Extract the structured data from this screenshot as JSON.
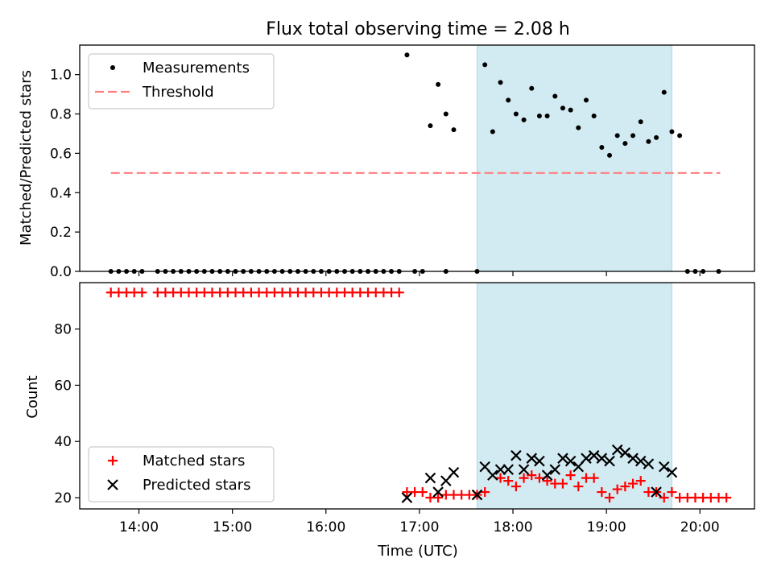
{
  "chart_data": [
    {
      "type": "scatter",
      "title": "Flux total observing time = 2.08 h",
      "xlabel": "",
      "ylabel": "Matched/Predicted stars",
      "ylim": [
        0,
        1.15
      ],
      "xlim": [
        "13:22",
        "20:35"
      ],
      "yticks": [
        "0.0",
        "0.2",
        "0.4",
        "0.6",
        "0.8",
        "1.0"
      ],
      "shaded_interval": [
        "17:37",
        "19:42"
      ],
      "threshold": {
        "value": 0.5,
        "x": [
          "13:42",
          "20:13"
        ],
        "color": "#ff7f7f"
      },
      "legend": {
        "position": "top-left",
        "entries": [
          {
            "label": "Measurements",
            "marker": "dot",
            "color": "#000000"
          },
          {
            "label": "Threshold",
            "marker": "dashed-line",
            "color": "#ff7f7f"
          }
        ]
      },
      "series": [
        {
          "name": "Measurements",
          "color": "#000000",
          "points": [
            [
              "13:42",
              0
            ],
            [
              "13:47",
              0
            ],
            [
              "13:52",
              0
            ],
            [
              "13:57",
              0
            ],
            [
              "14:02",
              0
            ],
            [
              "14:12",
              0
            ],
            [
              "14:17",
              0
            ],
            [
              "14:22",
              0
            ],
            [
              "14:27",
              0
            ],
            [
              "14:32",
              0
            ],
            [
              "14:37",
              0
            ],
            [
              "14:42",
              0
            ],
            [
              "14:47",
              0
            ],
            [
              "14:52",
              0
            ],
            [
              "14:57",
              0
            ],
            [
              "15:02",
              0
            ],
            [
              "15:07",
              0
            ],
            [
              "15:12",
              0
            ],
            [
              "15:17",
              0
            ],
            [
              "15:22",
              0
            ],
            [
              "15:27",
              0
            ],
            [
              "15:32",
              0
            ],
            [
              "15:37",
              0
            ],
            [
              "15:42",
              0
            ],
            [
              "15:47",
              0
            ],
            [
              "15:52",
              0
            ],
            [
              "15:57",
              0
            ],
            [
              "16:02",
              0
            ],
            [
              "16:07",
              0
            ],
            [
              "16:12",
              0
            ],
            [
              "16:17",
              0
            ],
            [
              "16:22",
              0
            ],
            [
              "16:27",
              0
            ],
            [
              "16:32",
              0
            ],
            [
              "16:37",
              0
            ],
            [
              "16:42",
              0
            ],
            [
              "16:47",
              0
            ],
            [
              "16:57",
              0
            ],
            [
              "17:02",
              0
            ],
            [
              "17:17",
              0
            ],
            [
              "17:37",
              0
            ],
            [
              "16:52",
              1.1
            ],
            [
              "17:07",
              0.74
            ],
            [
              "17:12",
              0.95
            ],
            [
              "17:17",
              0.8
            ],
            [
              "17:22",
              0.72
            ],
            [
              "17:42",
              1.05
            ],
            [
              "17:47",
              0.71
            ],
            [
              "17:52",
              0.96
            ],
            [
              "17:57",
              0.87
            ],
            [
              "18:02",
              0.8
            ],
            [
              "18:07",
              0.77
            ],
            [
              "18:12",
              0.93
            ],
            [
              "18:17",
              0.79
            ],
            [
              "18:22",
              0.79
            ],
            [
              "18:27",
              0.89
            ],
            [
              "18:32",
              0.83
            ],
            [
              "18:37",
              0.82
            ],
            [
              "18:42",
              0.73
            ],
            [
              "18:47",
              0.87
            ],
            [
              "18:52",
              0.79
            ],
            [
              "18:57",
              0.63
            ],
            [
              "19:02",
              0.59
            ],
            [
              "19:07",
              0.69
            ],
            [
              "19:12",
              0.65
            ],
            [
              "19:17",
              0.69
            ],
            [
              "19:22",
              0.76
            ],
            [
              "19:27",
              0.66
            ],
            [
              "19:32",
              0.68
            ],
            [
              "19:37",
              0.91
            ],
            [
              "19:42",
              0.71
            ],
            [
              "19:47",
              0.69
            ],
            [
              "19:52",
              0
            ],
            [
              "19:57",
              0
            ],
            [
              "20:02",
              0
            ],
            [
              "20:12",
              0
            ]
          ]
        }
      ]
    },
    {
      "type": "scatter",
      "xlabel": "Time (UTC)",
      "ylabel": "Count",
      "ylim": [
        16,
        96.5
      ],
      "xlim": [
        "13:22",
        "20:35"
      ],
      "xticks": [
        "14:00",
        "15:00",
        "16:00",
        "17:00",
        "18:00",
        "19:00",
        "20:00"
      ],
      "yticks": [
        "20",
        "40",
        "60",
        "80"
      ],
      "shaded_interval": [
        "17:37",
        "19:42"
      ],
      "legend": {
        "position": "bottom-left",
        "entries": [
          {
            "label": "Matched stars",
            "marker": "plus",
            "color": "#ff0000"
          },
          {
            "label": "Predicted stars",
            "marker": "x",
            "color": "#000000"
          }
        ]
      },
      "series": [
        {
          "name": "Matched stars",
          "marker": "plus",
          "color": "#ff0000",
          "points": [
            [
              "13:42",
              93
            ],
            [
              "13:47",
              93
            ],
            [
              "13:52",
              93
            ],
            [
              "13:57",
              93
            ],
            [
              "14:02",
              93
            ],
            [
              "14:12",
              93
            ],
            [
              "14:17",
              93
            ],
            [
              "14:22",
              93
            ],
            [
              "14:27",
              93
            ],
            [
              "14:32",
              93
            ],
            [
              "14:37",
              93
            ],
            [
              "14:42",
              93
            ],
            [
              "14:47",
              93
            ],
            [
              "14:52",
              93
            ],
            [
              "14:57",
              93
            ],
            [
              "15:02",
              93
            ],
            [
              "15:07",
              93
            ],
            [
              "15:12",
              93
            ],
            [
              "15:17",
              93
            ],
            [
              "15:22",
              93
            ],
            [
              "15:27",
              93
            ],
            [
              "15:32",
              93
            ],
            [
              "15:37",
              93
            ],
            [
              "15:42",
              93
            ],
            [
              "15:47",
              93
            ],
            [
              "15:52",
              93
            ],
            [
              "15:57",
              93
            ],
            [
              "16:02",
              93
            ],
            [
              "16:07",
              93
            ],
            [
              "16:12",
              93
            ],
            [
              "16:17",
              93
            ],
            [
              "16:22",
              93
            ],
            [
              "16:27",
              93
            ],
            [
              "16:32",
              93
            ],
            [
              "16:37",
              93
            ],
            [
              "16:42",
              93
            ],
            [
              "16:47",
              93
            ],
            [
              "16:52",
              22
            ],
            [
              "16:57",
              22
            ],
            [
              "17:02",
              22
            ],
            [
              "17:07",
              20
            ],
            [
              "17:12",
              20
            ],
            [
              "17:17",
              21
            ],
            [
              "17:22",
              21
            ],
            [
              "17:27",
              21
            ],
            [
              "17:32",
              21
            ],
            [
              "17:37",
              21
            ],
            [
              "17:42",
              22
            ],
            [
              "17:52",
              27
            ],
            [
              "17:57",
              26
            ],
            [
              "18:02",
              24
            ],
            [
              "18:07",
              27
            ],
            [
              "18:12",
              28
            ],
            [
              "18:17",
              27
            ],
            [
              "18:22",
              26
            ],
            [
              "18:27",
              25
            ],
            [
              "18:32",
              25
            ],
            [
              "18:37",
              28
            ],
            [
              "18:42",
              24
            ],
            [
              "18:47",
              27
            ],
            [
              "18:52",
              27
            ],
            [
              "18:57",
              22
            ],
            [
              "19:02",
              20
            ],
            [
              "19:07",
              23
            ],
            [
              "19:12",
              24
            ],
            [
              "19:17",
              25
            ],
            [
              "19:22",
              26
            ],
            [
              "19:27",
              22
            ],
            [
              "19:32",
              22
            ],
            [
              "19:37",
              20
            ],
            [
              "19:42",
              22
            ],
            [
              "19:47",
              20
            ],
            [
              "19:52",
              20
            ],
            [
              "19:57",
              20
            ],
            [
              "20:02",
              20
            ],
            [
              "20:07",
              20
            ],
            [
              "20:12",
              20
            ],
            [
              "20:17",
              20
            ]
          ]
        },
        {
          "name": "Predicted stars",
          "marker": "x",
          "color": "#000000",
          "points": [
            [
              "16:52",
              20
            ],
            [
              "17:07",
              27
            ],
            [
              "17:12",
              22
            ],
            [
              "17:17",
              26
            ],
            [
              "17:22",
              29
            ],
            [
              "17:37",
              21
            ],
            [
              "17:42",
              31
            ],
            [
              "17:47",
              28
            ],
            [
              "17:52",
              30
            ],
            [
              "17:57",
              30
            ],
            [
              "18:02",
              35
            ],
            [
              "18:07",
              30
            ],
            [
              "18:12",
              34
            ],
            [
              "18:17",
              33
            ],
            [
              "18:22",
              28
            ],
            [
              "18:27",
              30
            ],
            [
              "18:32",
              34
            ],
            [
              "18:37",
              33
            ],
            [
              "18:42",
              31
            ],
            [
              "18:47",
              34
            ],
            [
              "18:52",
              35
            ],
            [
              "18:57",
              34
            ],
            [
              "19:02",
              33
            ],
            [
              "19:07",
              37
            ],
            [
              "19:12",
              36
            ],
            [
              "19:17",
              34
            ],
            [
              "19:22",
              33
            ],
            [
              "19:27",
              32
            ],
            [
              "19:32",
              22
            ],
            [
              "19:37",
              31
            ],
            [
              "19:42",
              29
            ]
          ]
        }
      ]
    }
  ]
}
